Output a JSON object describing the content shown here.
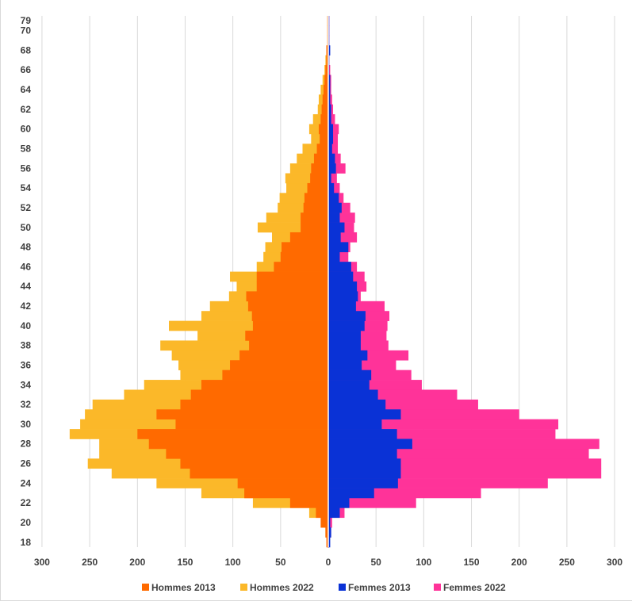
{
  "chart_data": {
    "type": "bar",
    "orientation": "horizontal-population-pyramid",
    "title": "",
    "xlabel": "",
    "ylabel": "",
    "xlim": [
      -300,
      300
    ],
    "x_ticks": [
      -300,
      -250,
      -200,
      -150,
      -100,
      -50,
      0,
      50,
      100,
      150,
      200,
      250,
      300
    ],
    "x_tick_labels": [
      "300",
      "250",
      "200",
      "150",
      "100",
      "50",
      "0",
      "50",
      "100",
      "150",
      "200",
      "250",
      "300"
    ],
    "y_tick_labels": [
      "18",
      "20",
      "22",
      "24",
      "26",
      "28",
      "30",
      "32",
      "34",
      "36",
      "38",
      "40",
      "42",
      "44",
      "46",
      "48",
      "50",
      "52",
      "54",
      "56",
      "58",
      "60",
      "62",
      "64",
      "66",
      "68",
      "70",
      "79"
    ],
    "grid": "vertical",
    "legend_position": "bottom",
    "categories": [
      "18",
      "19",
      "20",
      "21",
      "22",
      "23",
      "24",
      "25",
      "26",
      "27",
      "28",
      "29",
      "30",
      "31",
      "32",
      "33",
      "34",
      "35",
      "36",
      "37",
      "38",
      "39",
      "40",
      "41",
      "42",
      "43",
      "44",
      "45",
      "46",
      "47",
      "48",
      "49",
      "50",
      "51",
      "52",
      "53",
      "54",
      "55",
      "56",
      "57",
      "58",
      "59",
      "60",
      "61",
      "62",
      "63",
      "64",
      "65",
      "66",
      "67",
      "68",
      "69",
      "70",
      "71-79"
    ],
    "series": [
      {
        "name": "Hommes 2022",
        "color": "#FBB829",
        "side": "left",
        "values": [
          1,
          3,
          5,
          20,
          79,
          133,
          180,
          227,
          252,
          240,
          240,
          271,
          260,
          255,
          247,
          214,
          193,
          155,
          157,
          164,
          176,
          137,
          167,
          133,
          124,
          104,
          96,
          103,
          75,
          68,
          66,
          59,
          74,
          65,
          53,
          51,
          44,
          45,
          40,
          33,
          27,
          18,
          20,
          16,
          11,
          10,
          8,
          6,
          4,
          3,
          2,
          1,
          1,
          1
        ]
      },
      {
        "name": "Hommes 2013",
        "color": "#FF6A00",
        "side": "left",
        "values": [
          2,
          3,
          8,
          13,
          40,
          88,
          95,
          145,
          155,
          170,
          188,
          200,
          160,
          180,
          155,
          144,
          133,
          111,
          103,
          93,
          83,
          87,
          79,
          80,
          84,
          86,
          75,
          75,
          57,
          50,
          49,
          40,
          29,
          29,
          26,
          25,
          22,
          19,
          18,
          15,
          12,
          9,
          10,
          8,
          7,
          6,
          5,
          4,
          3,
          2,
          2,
          1,
          1,
          1
        ]
      },
      {
        "name": "Femmes 2022",
        "color": "#FF3399",
        "side": "right",
        "values": [
          1,
          3,
          4,
          17,
          92,
          160,
          230,
          286,
          286,
          273,
          284,
          238,
          241,
          200,
          157,
          135,
          98,
          87,
          71,
          84,
          63,
          61,
          62,
          64,
          59,
          34,
          40,
          38,
          30,
          21,
          23,
          30,
          27,
          28,
          23,
          16,
          12,
          9,
          18,
          13,
          10,
          10,
          11,
          7,
          5,
          4,
          3,
          3,
          2,
          1,
          1,
          1,
          1,
          1
        ]
      },
      {
        "name": "Femmes 2013",
        "color": "#0A32D6",
        "side": "right",
        "values": [
          2,
          3,
          2,
          12,
          22,
          48,
          73,
          76,
          76,
          72,
          88,
          72,
          56,
          76,
          60,
          52,
          43,
          45,
          35,
          41,
          34,
          34,
          38,
          39,
          29,
          31,
          30,
          26,
          24,
          12,
          21,
          13,
          17,
          12,
          14,
          11,
          6,
          3,
          8,
          7,
          4,
          5,
          5,
          3,
          3,
          2,
          2,
          2,
          1,
          1,
          2,
          1,
          1,
          1
        ]
      }
    ],
    "legend": [
      "Hommes 2013",
      "Hommes 2022",
      "Femmes 2013",
      "Femmes 2022"
    ],
    "colors": {
      "hommes_2013": "#FF6A00",
      "hommes_2022": "#FBB829",
      "femmes_2013": "#0A32D6",
      "femmes_2022": "#FF3399",
      "grid": "#d9d9d9",
      "axis": "#ffffff",
      "text": "#404040"
    }
  }
}
